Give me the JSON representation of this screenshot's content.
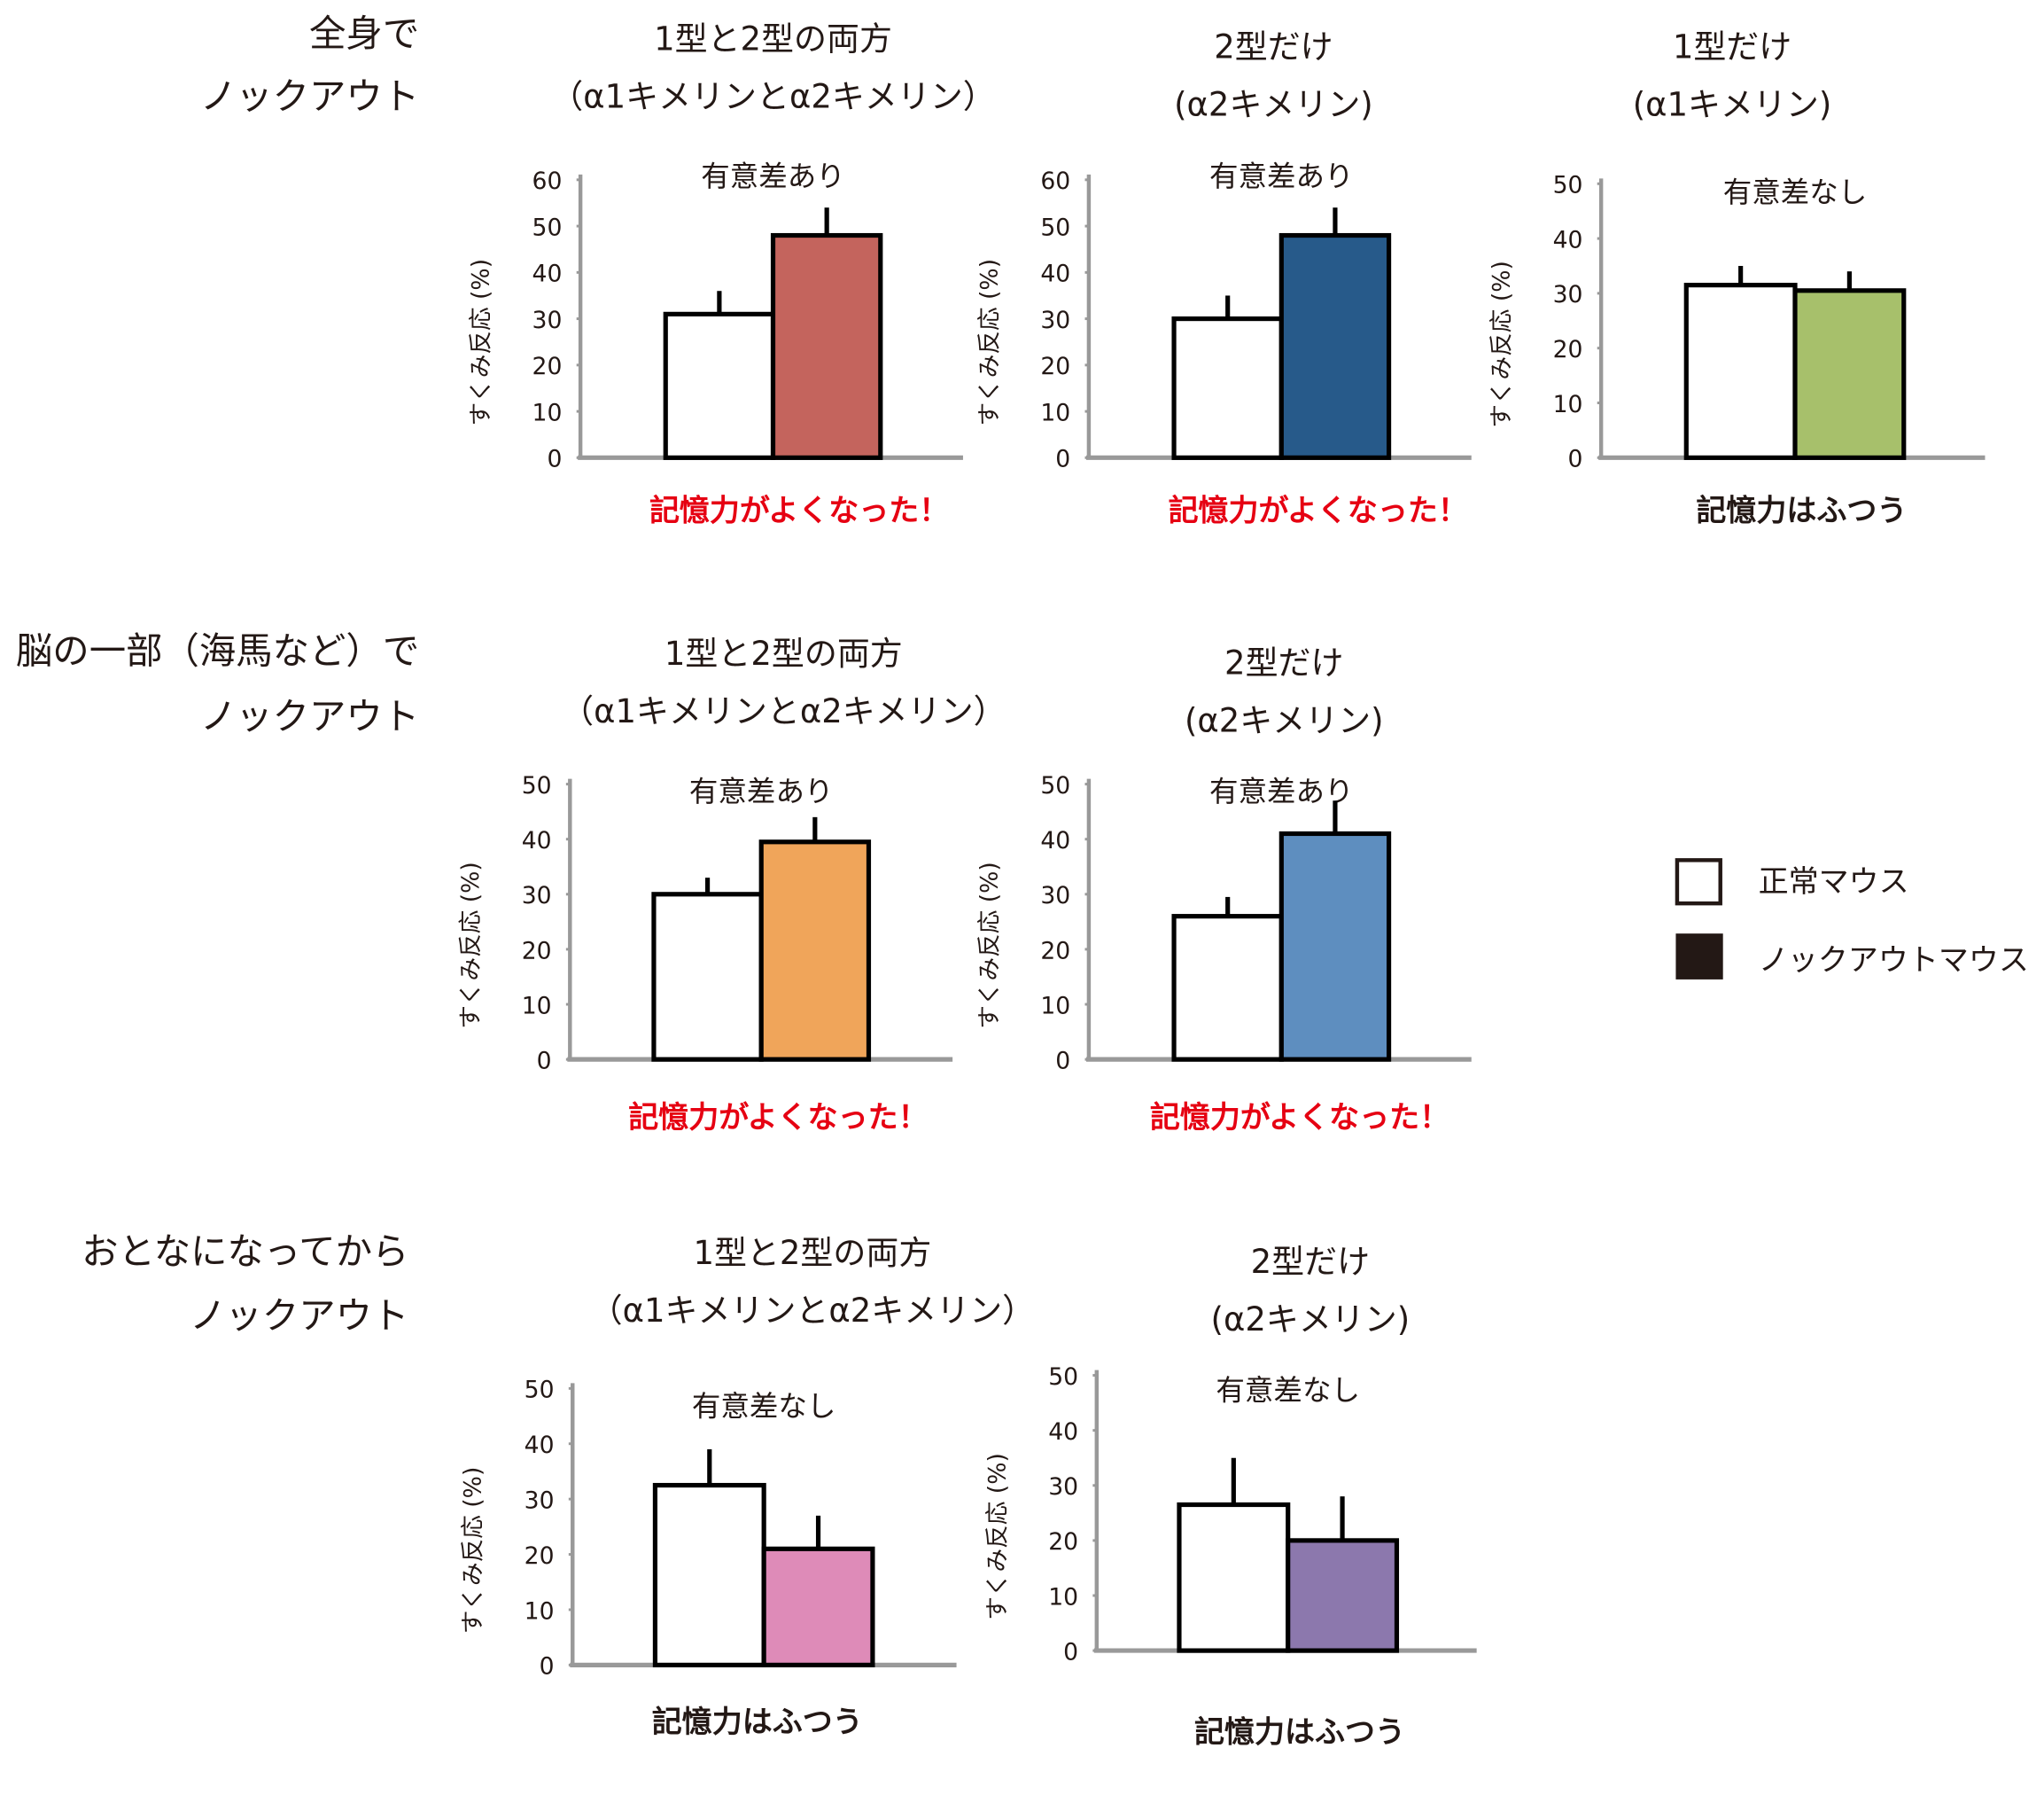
{
  "rows": [
    {
      "header": [
        "全身で",
        "ノックアウト"
      ]
    },
    {
      "header": [
        "脳の一部（海馬など）で",
        "ノックアウト"
      ]
    },
    {
      "header": [
        "おとなになってから",
        "ノックアウト"
      ]
    }
  ],
  "legend": {
    "normal": "正常マウス",
    "knockout": "ノックアウトマウス",
    "normal_color": "#ffffff",
    "knockout_color": "#231815"
  },
  "colors": {
    "improved_text": "#e60012",
    "normal_text": "#231815"
  },
  "chart_data": [
    {
      "type": "bar",
      "title": [
        "1型と2型の両方",
        "（α1キメリンとα2キメリン）"
      ],
      "significance": "有意差あり",
      "result": "記憶力がよくなった！",
      "result_highlight": true,
      "ylabel": "すくみ反応 (%)",
      "ylim": [
        0,
        60
      ],
      "yticks": [
        0,
        10,
        20,
        30,
        40,
        50,
        60
      ],
      "categories": [
        "正常マウス",
        "ノックアウトマウス"
      ],
      "values": [
        31,
        48
      ],
      "errors": [
        5,
        6
      ],
      "colors": [
        "#ffffff",
        "#c4645d"
      ]
    },
    {
      "type": "bar",
      "title": [
        "2型だけ",
        "(α2キメリン)"
      ],
      "significance": "有意差あり",
      "result": "記憶力がよくなった！",
      "result_highlight": true,
      "ylabel": "すくみ反応 (%)",
      "ylim": [
        0,
        60
      ],
      "yticks": [
        0,
        10,
        20,
        30,
        40,
        50,
        60
      ],
      "categories": [
        "正常マウス",
        "ノックアウトマウス"
      ],
      "values": [
        30,
        48
      ],
      "errors": [
        5,
        6
      ],
      "colors": [
        "#ffffff",
        "#275a8a"
      ]
    },
    {
      "type": "bar",
      "title": [
        "1型だけ",
        "(α1キメリン)"
      ],
      "significance": "有意差なし",
      "result": "記憶力はふつう",
      "result_highlight": false,
      "ylabel": "すくみ反応 (%)",
      "ylim": [
        0,
        50
      ],
      "yticks": [
        0,
        10,
        20,
        30,
        40,
        50
      ],
      "categories": [
        "正常マウス",
        "ノックアウトマウス"
      ],
      "values": [
        31.5,
        30.5
      ],
      "errors": [
        3.5,
        3.5
      ],
      "colors": [
        "#ffffff",
        "#a7c06b"
      ]
    },
    {
      "type": "bar",
      "title": [
        "1型と2型の両方",
        "（α1キメリンとα2キメリン）"
      ],
      "significance": "有意差あり",
      "result": "記憶力がよくなった！",
      "result_highlight": true,
      "ylabel": "すくみ反応 (%)",
      "ylim": [
        0,
        50
      ],
      "yticks": [
        0,
        10,
        20,
        30,
        40,
        50
      ],
      "categories": [
        "正常マウス",
        "ノックアウトマウス"
      ],
      "values": [
        30,
        39.5
      ],
      "errors": [
        3,
        4.5
      ],
      "colors": [
        "#ffffff",
        "#f0a55a"
      ]
    },
    {
      "type": "bar",
      "title": [
        "2型だけ",
        "(α2キメリン)"
      ],
      "significance": "有意差あり",
      "result": "記憶力がよくなった！",
      "result_highlight": true,
      "ylabel": "すくみ反応 (%)",
      "ylim": [
        0,
        50
      ],
      "yticks": [
        0,
        10,
        20,
        30,
        40,
        50
      ],
      "categories": [
        "正常マウス",
        "ノックアウトマウス"
      ],
      "values": [
        26,
        41
      ],
      "errors": [
        3.5,
        6
      ],
      "colors": [
        "#ffffff",
        "#5e8ebf"
      ]
    },
    {
      "type": "bar",
      "title": [
        "1型と2型の両方",
        "（α1キメリンとα2キメリン）"
      ],
      "significance": "有意差なし",
      "result": "記憶力はふつう",
      "result_highlight": false,
      "ylabel": "すくみ反応 (%)",
      "ylim": [
        0,
        50
      ],
      "yticks": [
        0,
        10,
        20,
        30,
        40,
        50
      ],
      "categories": [
        "正常マウス",
        "ノックアウトマウス"
      ],
      "values": [
        32.5,
        21
      ],
      "errors": [
        6.5,
        6
      ],
      "colors": [
        "#ffffff",
        "#de8bb8"
      ]
    },
    {
      "type": "bar",
      "title": [
        "2型だけ",
        "(α2キメリン)"
      ],
      "significance": "有意差なし",
      "result": "記憶力はふつう",
      "result_highlight": false,
      "ylabel": "すくみ反応 (%)",
      "ylim": [
        0,
        50
      ],
      "yticks": [
        0,
        10,
        20,
        30,
        40,
        50
      ],
      "categories": [
        "正常マウス",
        "ノックアウトマウス"
      ],
      "values": [
        26.5,
        20
      ],
      "errors": [
        8.5,
        8
      ],
      "colors": [
        "#ffffff",
        "#8c78ad"
      ]
    }
  ]
}
